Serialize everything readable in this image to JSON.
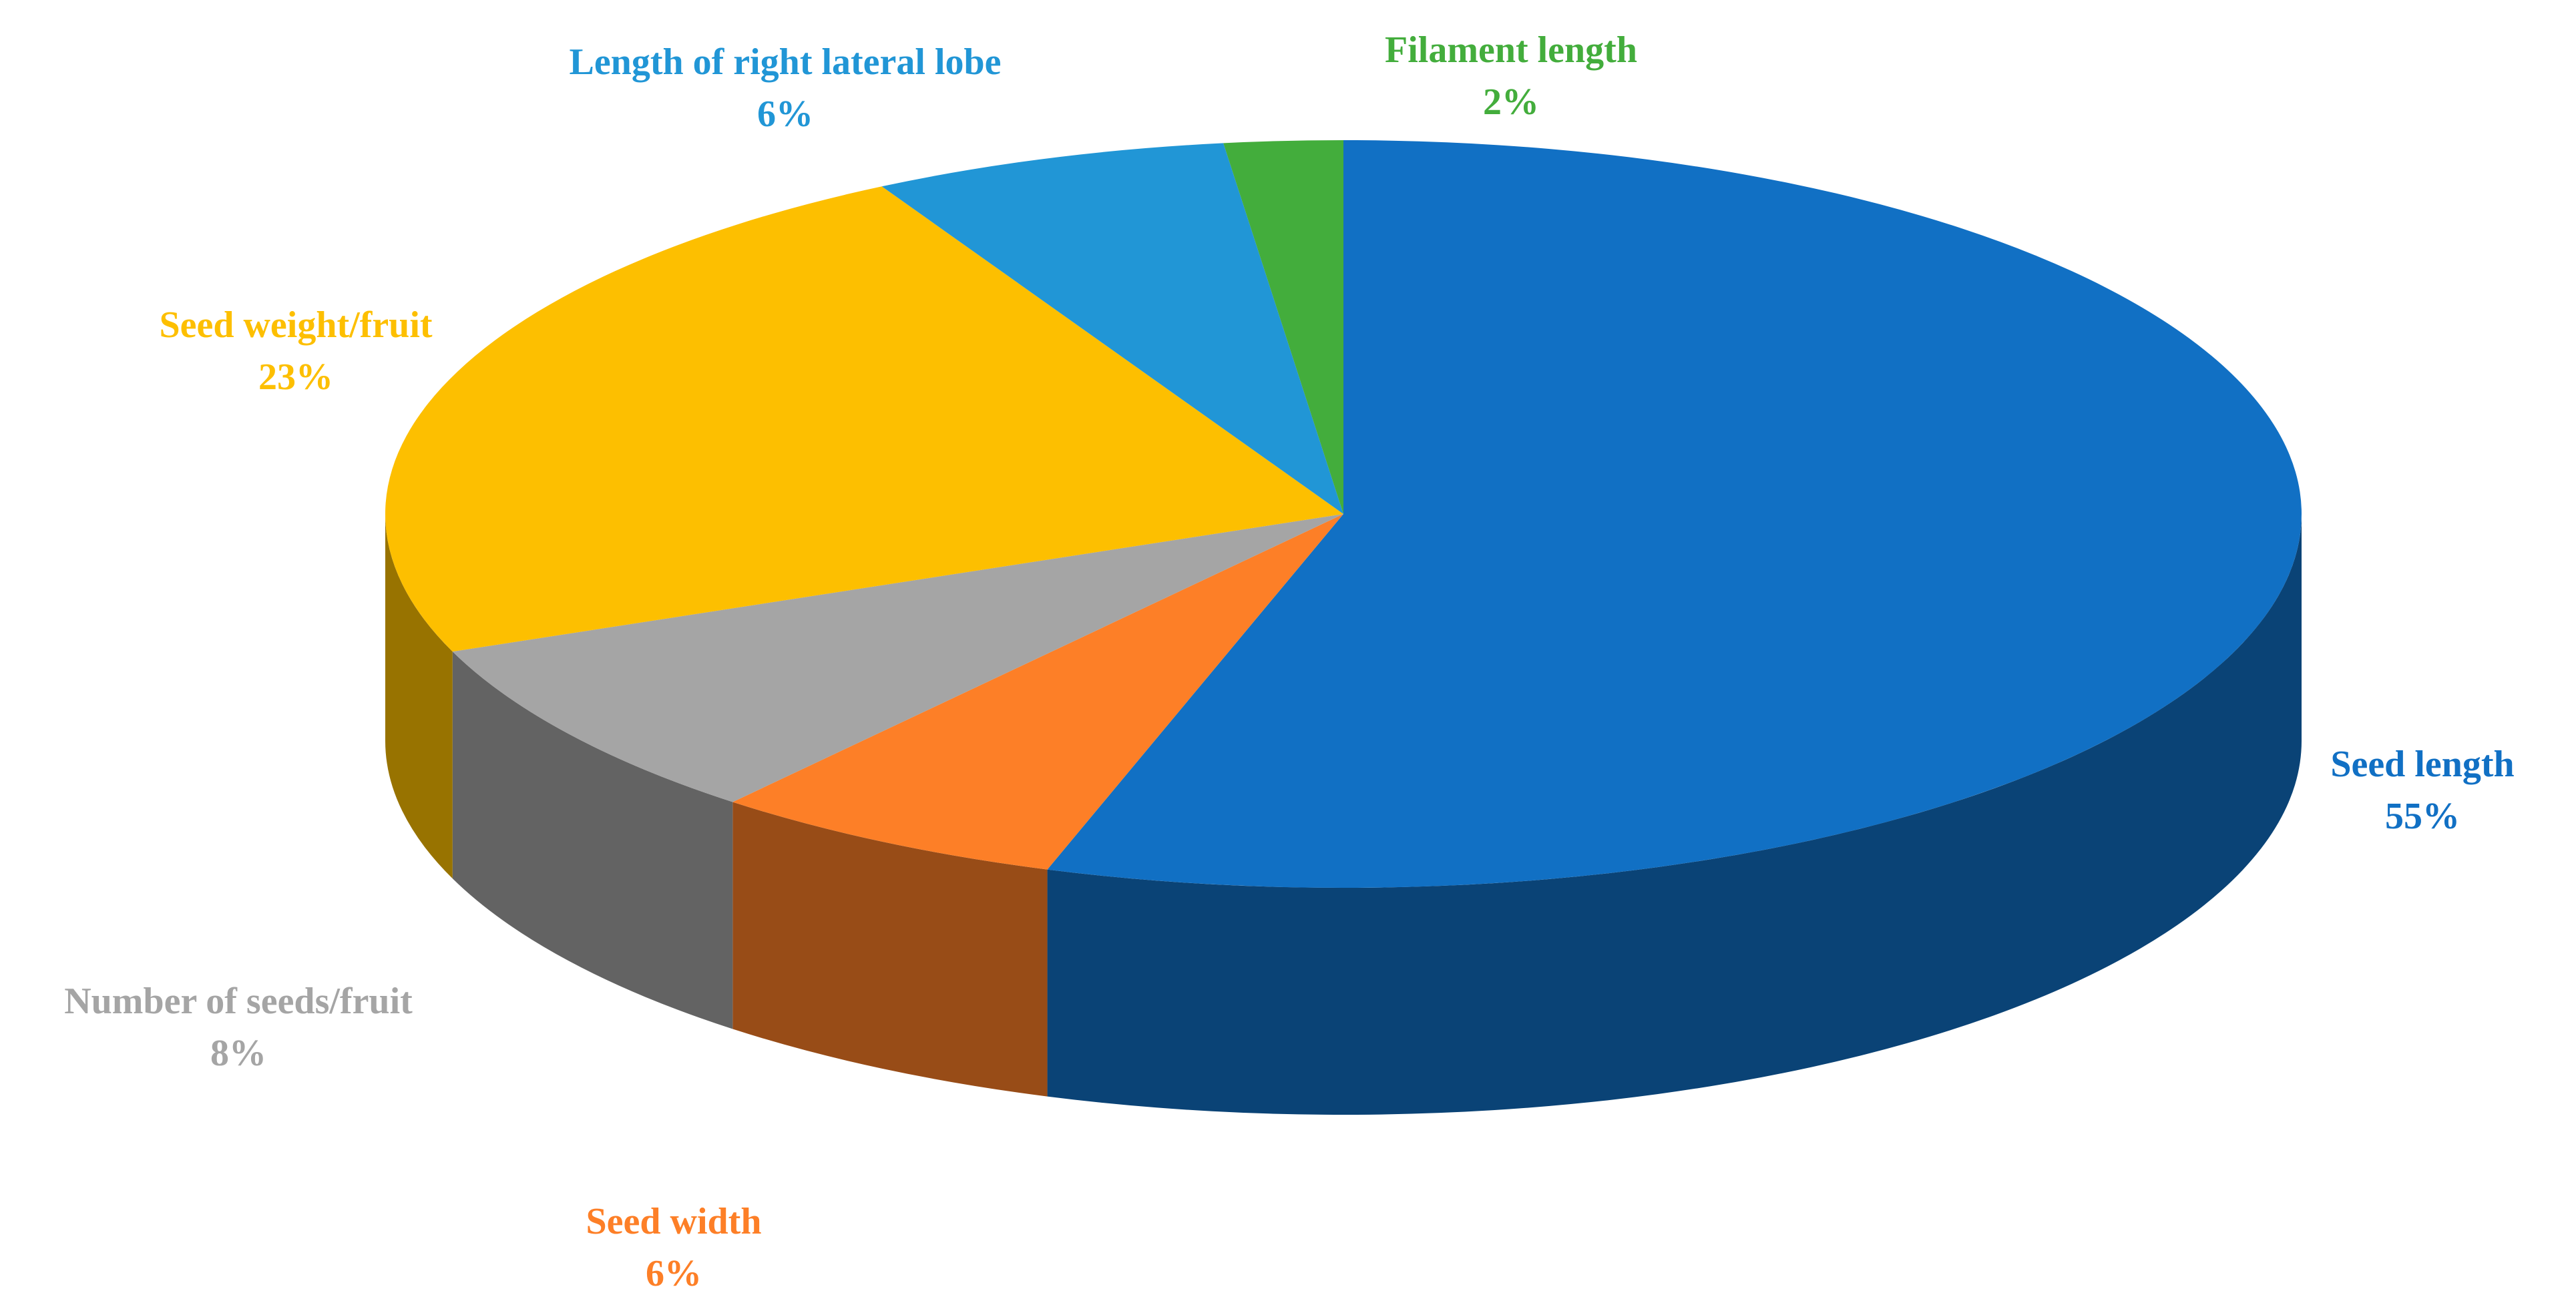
{
  "chart_data": {
    "type": "pie",
    "categories": [
      "Seed length",
      "Seed width",
      "Number  of seeds/fruit",
      "Seed weight/fruit",
      "Length of right  lateral  lobe",
      "Filament  length"
    ],
    "values": [
      55,
      6,
      8,
      23,
      6,
      2
    ],
    "value_labels": [
      "55%",
      "6%",
      "8%",
      "23%",
      "6%",
      "2%"
    ],
    "colors": [
      "#1170c4",
      "#fd7f27",
      "#a5a5a5",
      "#fdbf00",
      "#2196d6",
      "#43ad3c"
    ]
  }
}
